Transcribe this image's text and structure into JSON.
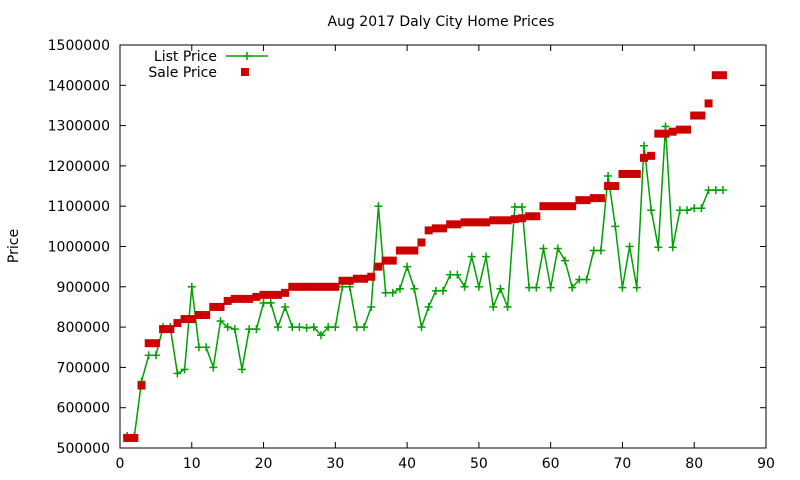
{
  "chart_data": {
    "type": "line",
    "title": "Aug 2017 Daly City Home Prices",
    "xlabel": "",
    "ylabel": "Price",
    "xlim": [
      0,
      90
    ],
    "ylim": [
      500000,
      1500000
    ],
    "x_ticks": [
      "0",
      "10",
      "20",
      "30",
      "40",
      "50",
      "60",
      "70",
      "80",
      "90"
    ],
    "y_ticks": [
      "500000",
      "600000",
      "700000",
      "800000",
      "900000",
      "1000000",
      "1100000",
      "1200000",
      "1300000",
      "1400000",
      "1500000"
    ],
    "grid": false,
    "legend_position": "top-left",
    "series": [
      {
        "name": "List Price",
        "style": "line+cross",
        "color": "#00a000",
        "x": [
          1,
          2,
          3,
          4,
          5,
          6,
          7,
          8,
          9,
          10,
          11,
          12,
          13,
          14,
          15,
          16,
          17,
          18,
          19,
          20,
          21,
          22,
          23,
          24,
          25,
          26,
          27,
          28,
          29,
          30,
          31,
          32,
          33,
          34,
          35,
          36,
          37,
          38,
          39,
          40,
          41,
          42,
          43,
          44,
          45,
          46,
          47,
          48,
          49,
          50,
          51,
          52,
          53,
          54,
          55,
          56,
          57,
          58,
          59,
          60,
          61,
          62,
          63,
          64,
          65,
          66,
          67,
          68,
          69,
          70,
          71,
          72,
          73,
          74,
          75,
          76,
          77,
          78,
          79,
          80,
          81,
          82,
          83,
          84
        ],
        "values": [
          530000,
          530000,
          665000,
          730000,
          730000,
          800000,
          800000,
          685000,
          695000,
          900000,
          750000,
          750000,
          700000,
          815000,
          800000,
          795000,
          695000,
          795000,
          795000,
          860000,
          860000,
          800000,
          850000,
          800000,
          800000,
          798000,
          800000,
          780000,
          800000,
          800000,
          900000,
          900000,
          800000,
          800000,
          850000,
          1100000,
          885000,
          885000,
          895000,
          950000,
          895000,
          800000,
          850000,
          890000,
          890000,
          930000,
          930000,
          900000,
          975000,
          900000,
          975000,
          850000,
          895000,
          850000,
          1098000,
          1098000,
          898000,
          898000,
          995000,
          898000,
          995000,
          965000,
          898000,
          918000,
          918000,
          990000,
          990000,
          1175000,
          1050000,
          898000,
          1000000,
          898000,
          1250000,
          1090000,
          998000,
          1298000,
          998000,
          1090000,
          1090000,
          1095000,
          1095000,
          1140000,
          1140000,
          1140000
        ]
      },
      {
        "name": "Sale Price",
        "style": "square",
        "color": "#cc0000",
        "x": [
          1,
          2,
          3,
          4,
          5,
          6,
          7,
          8,
          9,
          10,
          11,
          12,
          13,
          14,
          15,
          16,
          17,
          18,
          19,
          20,
          21,
          22,
          23,
          24,
          25,
          26,
          27,
          28,
          29,
          30,
          31,
          32,
          33,
          34,
          35,
          36,
          37,
          38,
          39,
          40,
          41,
          42,
          43,
          44,
          45,
          46,
          47,
          48,
          49,
          50,
          51,
          52,
          53,
          54,
          55,
          56,
          57,
          58,
          59,
          60,
          61,
          62,
          63,
          64,
          65,
          66,
          67,
          68,
          69,
          70,
          71,
          72,
          73,
          74,
          75,
          76,
          77,
          78,
          79,
          80,
          81,
          82,
          83,
          84
        ],
        "values": [
          525000,
          525000,
          655000,
          760000,
          760000,
          795000,
          795000,
          810000,
          820000,
          820000,
          830000,
          830000,
          850000,
          850000,
          865000,
          870000,
          870000,
          870000,
          875000,
          880000,
          880000,
          880000,
          885000,
          900000,
          900000,
          900000,
          900000,
          900000,
          900000,
          900000,
          915000,
          915000,
          920000,
          920000,
          925000,
          950000,
          965000,
          965000,
          990000,
          990000,
          990000,
          1010000,
          1040000,
          1045000,
          1045000,
          1055000,
          1055000,
          1060000,
          1060000,
          1060000,
          1060000,
          1065000,
          1065000,
          1065000,
          1068000,
          1070000,
          1075000,
          1075000,
          1100000,
          1100000,
          1100000,
          1100000,
          1100000,
          1115000,
          1115000,
          1120000,
          1120000,
          1150000,
          1150000,
          1180000,
          1180000,
          1180000,
          1220000,
          1225000,
          1280000,
          1280000,
          1285000,
          1290000,
          1290000,
          1325000,
          1325000,
          1355000,
          1425000,
          1425000
        ]
      }
    ]
  }
}
